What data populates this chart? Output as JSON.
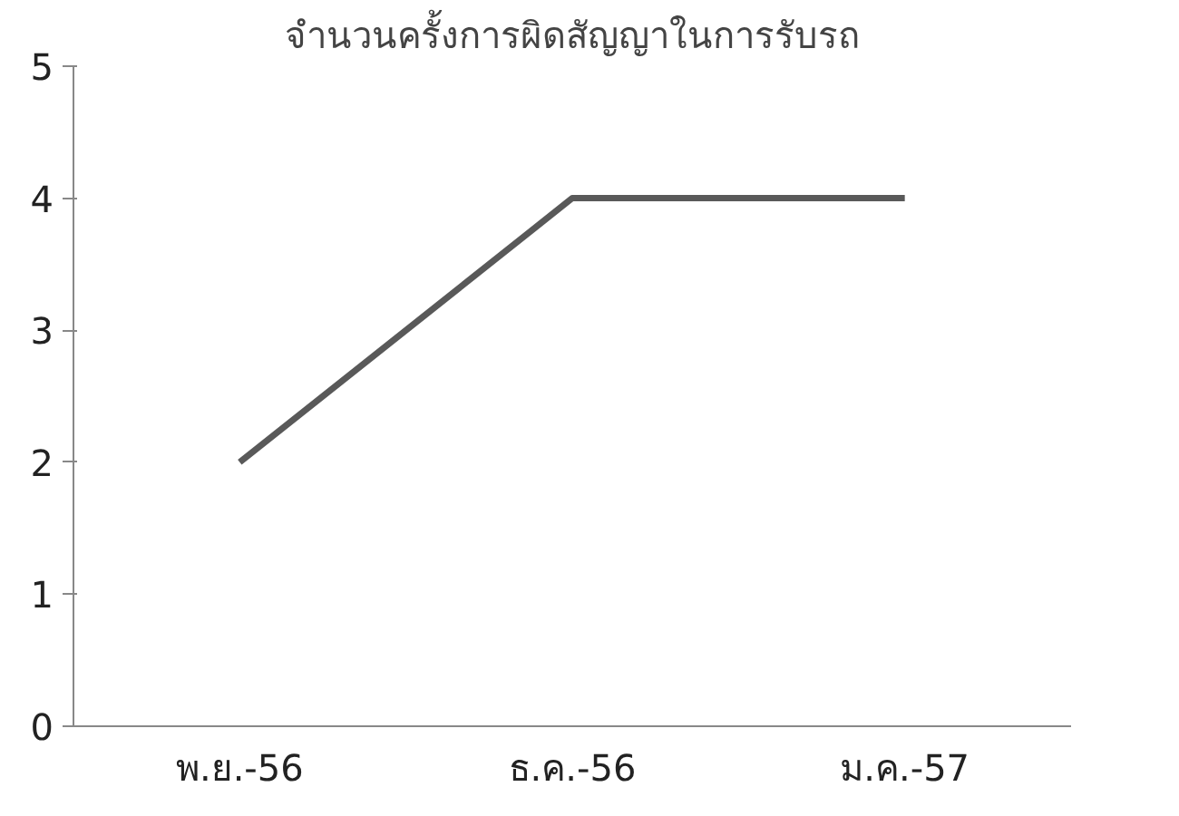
{
  "chart_data": {
    "type": "line",
    "title": "จำนวนครั้งการผิดสัญญาในการรับรถ",
    "categories": [
      "พ.ย.-56",
      "ธ.ค.-56",
      "ม.ค.-57"
    ],
    "series": [
      {
        "color": "#595959",
        "values": [
          2,
          4,
          4
        ]
      }
    ],
    "ylim": [
      0,
      5
    ],
    "yticks": [
      0,
      1,
      2,
      3,
      4,
      5
    ],
    "grid": false,
    "marker": "none",
    "line_style": "solid"
  }
}
